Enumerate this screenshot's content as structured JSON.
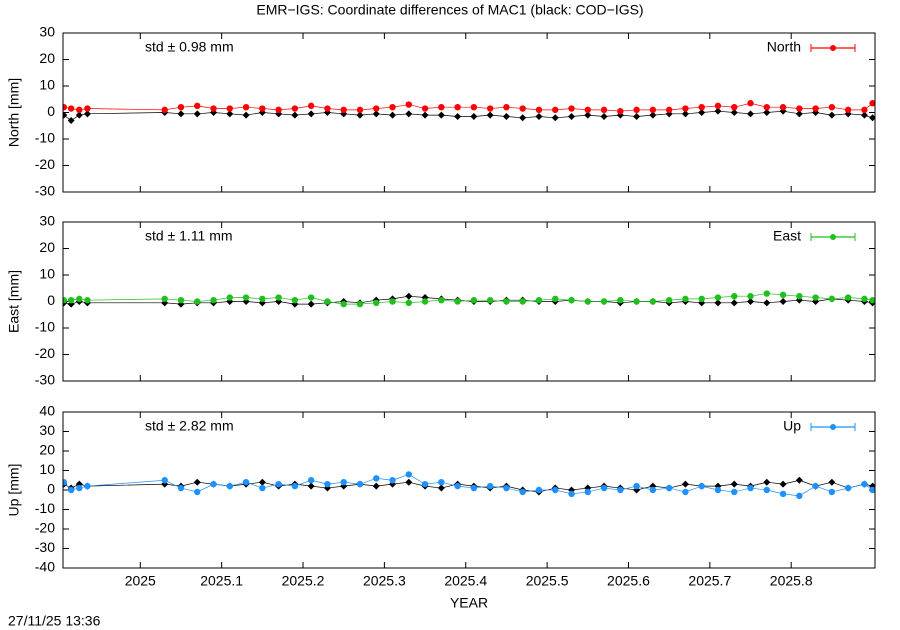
{
  "chart_data": [
    {
      "type": "line",
      "title": "EMR−IGS: Coordinate differences of MAC1 (black: COD−IGS)",
      "ylabel": "North [mm]",
      "annotation": "std ± 0.98 mm",
      "legend": "upper right",
      "xlim": [
        2024.905,
        2025.903
      ],
      "xticks": [
        2025,
        2025.1,
        2025.2,
        2025.3,
        2025.4,
        2025.5,
        2025.6,
        2025.7,
        2025.8
      ],
      "ylim": [
        -30,
        30
      ],
      "yticks": [
        -30,
        -20,
        -10,
        0,
        10,
        20,
        30
      ],
      "x": [
        2024.906,
        2024.915,
        2024.925,
        2024.935,
        2025.03,
        2025.05,
        2025.07,
        2025.09,
        2025.11,
        2025.13,
        2025.15,
        2025.17,
        2025.19,
        2025.21,
        2025.23,
        2025.25,
        2025.27,
        2025.29,
        2025.31,
        2025.33,
        2025.35,
        2025.37,
        2025.39,
        2025.41,
        2025.43,
        2025.45,
        2025.47,
        2025.49,
        2025.51,
        2025.53,
        2025.55,
        2025.57,
        2025.59,
        2025.61,
        2025.63,
        2025.65,
        2025.67,
        2025.69,
        2025.71,
        2025.73,
        2025.75,
        2025.77,
        2025.79,
        2025.81,
        2025.83,
        2025.85,
        2025.87,
        2025.89,
        2025.9
      ],
      "series": [
        {
          "color": "#000000",
          "values": [
            -1,
            -3,
            -1,
            -0.5,
            0,
            -0.5,
            -0.5,
            0,
            -0.5,
            -1,
            0,
            -0.5,
            -1,
            -0.5,
            0,
            -0.5,
            -1,
            -0.5,
            -1,
            -0.5,
            -1,
            -1,
            -1.5,
            -1.5,
            -1,
            -1.5,
            -2,
            -1.5,
            -2,
            -1.5,
            -1,
            -1.5,
            -1,
            -1.5,
            -1,
            -0.5,
            -0.5,
            0,
            0.5,
            0,
            -0.5,
            0,
            0.5,
            -0.5,
            0,
            -1,
            -0.5,
            -1,
            -2
          ]
        },
        {
          "name": "North",
          "color": "#ff0000",
          "values": [
            2,
            1.5,
            1,
            1.5,
            1,
            2,
            2.5,
            1.5,
            1.5,
            2,
            1.5,
            1,
            1.5,
            2.5,
            1.5,
            1,
            1,
            1.5,
            2,
            3,
            1.5,
            2,
            2,
            2,
            1.5,
            2,
            1.5,
            1,
            1,
            1.5,
            1,
            1,
            0.5,
            1,
            1,
            1,
            1.5,
            2,
            2.5,
            2,
            3.5,
            2,
            2,
            1.5,
            1.5,
            2,
            1,
            1,
            3.5
          ]
        }
      ]
    },
    {
      "type": "line",
      "ylabel": "East [mm]",
      "annotation": "std ± 1.11 mm",
      "legend": "upper right",
      "xlim": [
        2024.905,
        2025.903
      ],
      "xticks": [
        2025,
        2025.1,
        2025.2,
        2025.3,
        2025.4,
        2025.5,
        2025.6,
        2025.7,
        2025.8
      ],
      "ylim": [
        -30,
        30
      ],
      "yticks": [
        -30,
        -20,
        -10,
        0,
        10,
        20,
        30
      ],
      "x": [
        2024.906,
        2024.915,
        2024.925,
        2024.935,
        2025.03,
        2025.05,
        2025.07,
        2025.09,
        2025.11,
        2025.13,
        2025.15,
        2025.17,
        2025.19,
        2025.21,
        2025.23,
        2025.25,
        2025.27,
        2025.29,
        2025.31,
        2025.33,
        2025.35,
        2025.37,
        2025.39,
        2025.41,
        2025.43,
        2025.45,
        2025.47,
        2025.49,
        2025.51,
        2025.53,
        2025.55,
        2025.57,
        2025.59,
        2025.61,
        2025.63,
        2025.65,
        2025.67,
        2025.69,
        2025.71,
        2025.73,
        2025.75,
        2025.77,
        2025.79,
        2025.81,
        2025.83,
        2025.85,
        2025.87,
        2025.89,
        2025.9
      ],
      "series": [
        {
          "color": "#000000",
          "values": [
            -0.5,
            -1,
            0,
            -0.5,
            -0.5,
            -1,
            -0.5,
            -0.5,
            0,
            0,
            -0.5,
            0,
            -1,
            -1,
            -0.5,
            0,
            -0.5,
            0.5,
            1,
            2,
            1.5,
            1,
            0.5,
            0,
            0,
            0.5,
            0.5,
            0,
            0,
            0.5,
            0,
            0,
            -0.5,
            0,
            0,
            -0.5,
            0,
            -0.5,
            -0.5,
            -0.5,
            0,
            -0.5,
            0,
            0.5,
            0,
            1,
            0.5,
            0,
            -0.5
          ]
        },
        {
          "name": "East",
          "color": "#1ec01e",
          "values": [
            0.5,
            0.5,
            1,
            0.5,
            1,
            0.5,
            0,
            0.5,
            1.5,
            1.5,
            1,
            1.5,
            0.5,
            1.5,
            0,
            -1,
            -1,
            -0.5,
            0,
            -0.5,
            0,
            0.5,
            0,
            0.5,
            0.5,
            0,
            0,
            0.5,
            1,
            0.5,
            0,
            0,
            0.5,
            0,
            0,
            0.5,
            1,
            1,
            1.5,
            2,
            2,
            3,
            2.5,
            2,
            1.5,
            1,
            1.5,
            1,
            0.5
          ]
        }
      ]
    },
    {
      "type": "line",
      "ylabel": "Up [mm]",
      "xlabel": "YEAR",
      "annotation": "std ± 2.82 mm",
      "legend": "upper right",
      "xlim": [
        2024.905,
        2025.903
      ],
      "xticks": [
        2025,
        2025.1,
        2025.2,
        2025.3,
        2025.4,
        2025.5,
        2025.6,
        2025.7,
        2025.8
      ],
      "ylim": [
        -40,
        40
      ],
      "yticks": [
        -40,
        -30,
        -20,
        -10,
        0,
        10,
        20,
        30,
        40
      ],
      "x": [
        2024.906,
        2024.915,
        2024.925,
        2024.935,
        2025.03,
        2025.05,
        2025.07,
        2025.09,
        2025.11,
        2025.13,
        2025.15,
        2025.17,
        2025.19,
        2025.21,
        2025.23,
        2025.25,
        2025.27,
        2025.29,
        2025.31,
        2025.33,
        2025.35,
        2025.37,
        2025.39,
        2025.41,
        2025.43,
        2025.45,
        2025.47,
        2025.49,
        2025.51,
        2025.53,
        2025.55,
        2025.57,
        2025.59,
        2025.61,
        2025.63,
        2025.65,
        2025.67,
        2025.69,
        2025.71,
        2025.73,
        2025.75,
        2025.77,
        2025.79,
        2025.81,
        2025.83,
        2025.85,
        2025.87,
        2025.89,
        2025.9
      ],
      "series": [
        {
          "color": "#000000",
          "values": [
            3,
            1,
            3,
            2,
            3,
            2,
            4,
            3,
            2,
            3,
            4,
            2,
            3,
            2,
            1,
            2,
            3,
            2,
            3,
            4,
            2,
            1,
            3,
            2,
            1,
            2,
            0,
            -1,
            1,
            0,
            1,
            2,
            1,
            0,
            2,
            1,
            3,
            2,
            2,
            3,
            2,
            4,
            3,
            5,
            2,
            4,
            1,
            3,
            2
          ]
        },
        {
          "name": "Up",
          "color": "#1e90ff",
          "values": [
            4,
            0,
            1,
            2,
            5,
            1,
            -1,
            3,
            2,
            4,
            1,
            3,
            2,
            5,
            3,
            4,
            3,
            6,
            5,
            8,
            3,
            4,
            2,
            1,
            2,
            1,
            -1,
            0,
            0,
            -2,
            -1,
            1,
            0,
            2,
            0,
            1,
            -1,
            2,
            0,
            -1,
            1,
            0,
            -2,
            -3,
            2,
            -1,
            1,
            3,
            0
          ]
        }
      ]
    }
  ],
  "timestamp": "27/11/25 13:36"
}
